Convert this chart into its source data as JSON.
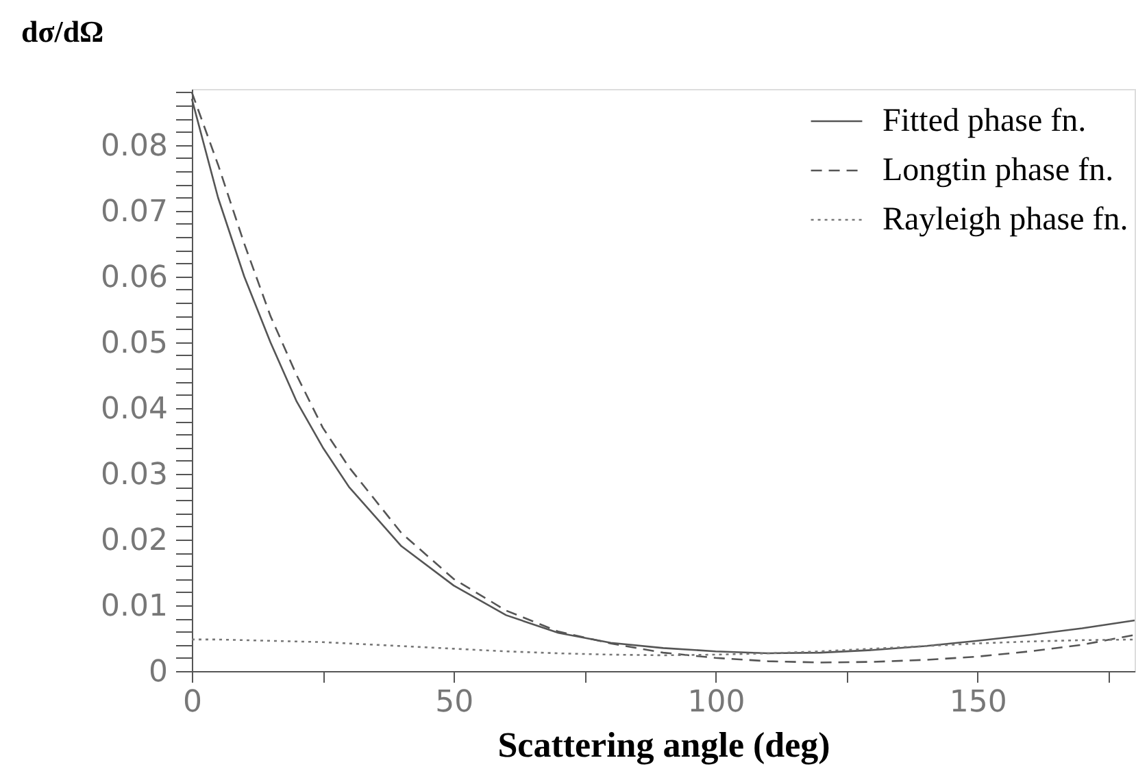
{
  "chart_data": {
    "type": "line",
    "xlabel": "Scattering angle (deg)",
    "ylabel": "dσ/dΩ",
    "x": [
      0,
      5,
      10,
      15,
      20,
      25,
      30,
      40,
      50,
      60,
      70,
      80,
      90,
      100,
      110,
      120,
      130,
      140,
      150,
      160,
      170,
      180
    ],
    "series": [
      {
        "name": "Fitted phase fn.",
        "color": "#555555",
        "line_style": "solid",
        "values": [
          0.087,
          0.072,
          0.06,
          0.05,
          0.041,
          0.034,
          0.028,
          0.019,
          0.013,
          0.0085,
          0.0058,
          0.0043,
          0.0035,
          0.003,
          0.0027,
          0.0028,
          0.0032,
          0.0038,
          0.0046,
          0.0055,
          0.0065,
          0.0077
        ]
      },
      {
        "name": "Longtin phase fn.",
        "color": "#555555",
        "line_style": "dashed",
        "values": [
          0.088,
          0.077,
          0.065,
          0.054,
          0.045,
          0.037,
          0.031,
          0.021,
          0.014,
          0.0092,
          0.006,
          0.0042,
          0.0028,
          0.002,
          0.0015,
          0.0013,
          0.0014,
          0.0017,
          0.0022,
          0.003,
          0.004,
          0.0055
        ]
      },
      {
        "name": "Rayleigh phase fn.",
        "color": "#777777",
        "line_style": "dotted",
        "values": [
          0.0048,
          0.0048,
          0.0047,
          0.0046,
          0.0045,
          0.0044,
          0.0042,
          0.0038,
          0.0034,
          0.003,
          0.0027,
          0.0025,
          0.0024,
          0.0025,
          0.0027,
          0.003,
          0.0034,
          0.0038,
          0.0042,
          0.0045,
          0.0047,
          0.0048
        ]
      }
    ],
    "xlim": [
      0,
      180
    ],
    "xticks": [
      0,
      {
        "value": 25,
        "label": null
      },
      50,
      {
        "value": 75,
        "label": null
      },
      100,
      {
        "value": 125,
        "label": null
      },
      150,
      {
        "value": 175,
        "label": null
      }
    ],
    "ylim": [
      0,
      0.0885
    ],
    "yticks": [
      0,
      {
        "value": 0.002,
        "label": null
      },
      {
        "value": 0.004,
        "label": null
      },
      {
        "value": 0.006,
        "label": null
      },
      {
        "value": 0.008,
        "label": null
      },
      0.01,
      {
        "value": 0.012,
        "label": null
      },
      {
        "value": 0.014,
        "label": null
      },
      {
        "value": 0.016,
        "label": null
      },
      {
        "value": 0.018,
        "label": null
      },
      0.02,
      {
        "value": 0.022,
        "label": null
      },
      {
        "value": 0.024,
        "label": null
      },
      {
        "value": 0.026,
        "label": null
      },
      {
        "value": 0.028,
        "label": null
      },
      0.03,
      {
        "value": 0.032,
        "label": null
      },
      {
        "value": 0.034,
        "label": null
      },
      {
        "value": 0.036,
        "label": null
      },
      {
        "value": 0.038,
        "label": null
      },
      0.04,
      {
        "value": 0.042,
        "label": null
      },
      {
        "value": 0.044,
        "label": null
      },
      {
        "value": 0.046,
        "label": null
      },
      {
        "value": 0.048,
        "label": null
      },
      0.05,
      {
        "value": 0.052,
        "label": null
      },
      {
        "value": 0.054,
        "label": null
      },
      {
        "value": 0.056,
        "label": null
      },
      {
        "value": 0.058,
        "label": null
      },
      0.06,
      {
        "value": 0.062,
        "label": null
      },
      {
        "value": 0.064,
        "label": null
      },
      {
        "value": 0.066,
        "label": null
      },
      {
        "value": 0.068,
        "label": null
      },
      0.07,
      {
        "value": 0.072,
        "label": null
      },
      {
        "value": 0.074,
        "label": null
      },
      {
        "value": 0.076,
        "label": null
      },
      {
        "value": 0.078,
        "label": null
      },
      0.08,
      {
        "value": 0.082,
        "label": null
      },
      {
        "value": 0.084,
        "label": null
      },
      {
        "value": 0.086,
        "label": null
      },
      {
        "value": 0.088,
        "label": null
      }
    ],
    "grid": false,
    "legend": "top right"
  }
}
